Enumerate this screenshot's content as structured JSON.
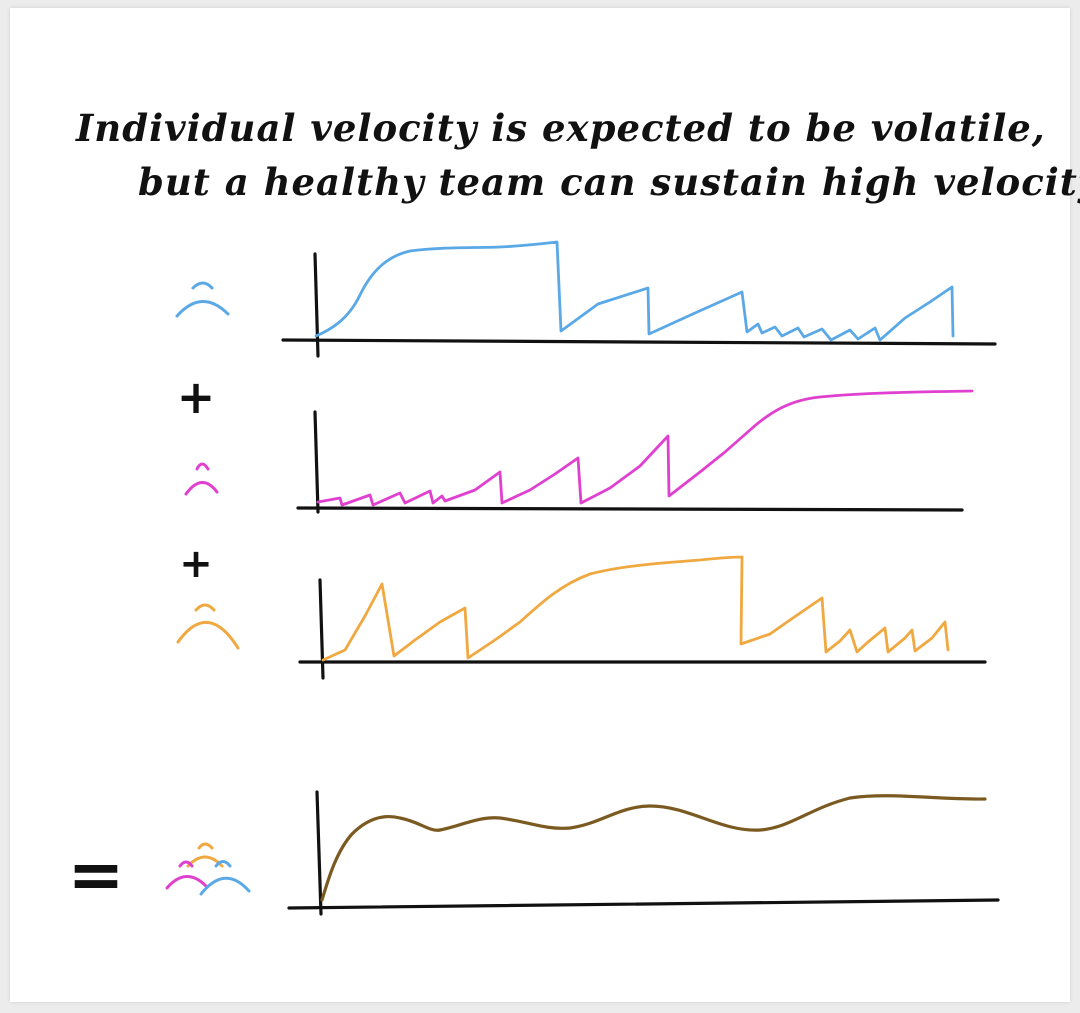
{
  "title": {
    "line1": "Individual velocity is expected to be volatile,",
    "line2": "but a healthy team can sustain high velocity"
  },
  "operators": {
    "plus_1": "+",
    "plus_2": "+",
    "equals": "="
  },
  "colors": {
    "blue_member": "#5aa9e6",
    "magenta_member": "#e040d0",
    "orange_member": "#f0a840",
    "team": "#7a5a20",
    "axes": "#111111",
    "background": "#ffffff"
  },
  "icons": {
    "blue_member": "person-icon",
    "magenta_member": "person-icon",
    "orange_member": "person-icon",
    "team": "group-icon"
  },
  "chart_data": [
    {
      "type": "line",
      "series": [
        {
          "values": [
            0.0,
            0.55,
            0.86,
            0.88,
            0.88,
            0.89,
            0.9,
            0.92,
            0.0,
            0.1,
            0.3,
            0.0,
            0.15,
            0.25,
            0.3,
            0.0,
            0.05,
            0.05,
            0.1,
            0.0,
            0.22,
            0.32,
            0.0
          ]
        }
      ],
      "color": "#5aa9e6",
      "ylim": [
        0,
        1
      ]
    },
    {
      "type": "line",
      "series": [
        {
          "values": [
            0.05,
            0.08,
            0.0,
            0.08,
            0.0,
            0.12,
            0.0,
            0.2,
            0.0,
            0.4,
            0.0,
            0.45,
            0.0,
            0.2,
            0.5,
            0.0,
            0.3,
            0.62,
            0.83,
            0.9,
            0.92,
            0.94
          ]
        }
      ],
      "color": "#e040d0",
      "ylim": [
        0,
        1
      ]
    },
    {
      "type": "line",
      "series": [
        {
          "values": [
            0.0,
            0.55,
            0.0,
            0.3,
            0.0,
            0.3,
            0.6,
            0.86,
            0.9,
            0.93,
            0.95,
            0.0,
            0.08,
            0.5,
            0.0,
            0.2,
            0.0,
            0.2,
            0.0,
            0.3
          ]
        }
      ],
      "color": "#f0a840",
      "ylim": [
        0,
        1
      ]
    },
    {
      "type": "line",
      "series": [
        {
          "values": [
            0.0,
            0.6,
            0.82,
            0.72,
            0.82,
            0.75,
            0.82,
            0.88,
            0.79,
            0.75,
            0.85,
            0.9,
            0.9
          ]
        }
      ],
      "color": "#7a5a20",
      "ylim": [
        0,
        1
      ]
    }
  ]
}
